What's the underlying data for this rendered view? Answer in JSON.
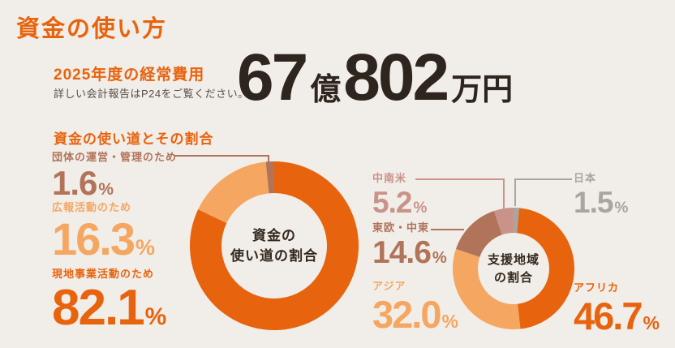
{
  "page": {
    "title": "資金の使い方",
    "background_color": "#F1EDE8"
  },
  "header": {
    "fiscal_label": "2025年度の経常費用",
    "note": "詳しい会計報告はP24をご覧ください。",
    "amount": {
      "value1": "67",
      "unit1": "億",
      "value2": "802",
      "unit2": "万円"
    },
    "accent_color": "#E8630D",
    "amount_color": "#2D251E"
  },
  "usage_section": {
    "heading": "資金の使い道とその割合",
    "center_label_line1": "資金の",
    "center_label_line2": "使い道の割合",
    "items": [
      {
        "label": "団体の運営・管理のため",
        "value": "1.6",
        "unit": "%",
        "color": "#B1735A"
      },
      {
        "label": "広報活動のため",
        "value": "16.3",
        "unit": "%",
        "color": "#F5A661"
      },
      {
        "label": "現地事業活動のため",
        "value": "82.1",
        "unit": "%",
        "color": "#E8630D"
      }
    ]
  },
  "region_section": {
    "center_label_line1": "支援地域",
    "center_label_line2": "の割合",
    "items": [
      {
        "label": "中南米",
        "value": "5.2",
        "unit": "%",
        "color": "#C9938A"
      },
      {
        "label": "日本",
        "value": "1.5",
        "unit": "%",
        "color": "#ABA5A0"
      },
      {
        "label": "東欧・中東",
        "value": "14.6",
        "unit": "%",
        "color": "#B1735A"
      },
      {
        "label": "アジア",
        "value": "32.0",
        "unit": "%",
        "color": "#F5A661"
      },
      {
        "label": "アフリカ",
        "value": "46.7",
        "unit": "%",
        "color": "#E8630D"
      }
    ]
  },
  "chart_data": [
    {
      "type": "pie",
      "donut": true,
      "title": "資金の使い道の割合",
      "note": "slices drawn clockwise starting at 12 o'clock",
      "labels": [
        "現地事業活動のため",
        "広報活動のため",
        "団体の運営・管理のため"
      ],
      "values": [
        82.1,
        16.3,
        1.6
      ],
      "colors": [
        "#E8630D",
        "#F5A661",
        "#B1735A"
      ],
      "legend_position": "left-labels",
      "center_label": "資金の使い道の割合"
    },
    {
      "type": "pie",
      "donut": true,
      "title": "支援地域の割合",
      "note": "slices drawn clockwise starting at 12 o'clock",
      "labels": [
        "日本",
        "アフリカ",
        "アジア",
        "東欧・中東",
        "中南米"
      ],
      "values": [
        1.5,
        46.7,
        32.0,
        14.6,
        5.2
      ],
      "colors": [
        "#ABA5A0",
        "#E8630D",
        "#F5A661",
        "#B1735A",
        "#C9938A"
      ],
      "legend_position": "side-labels",
      "center_label": "支援地域の割合"
    }
  ]
}
